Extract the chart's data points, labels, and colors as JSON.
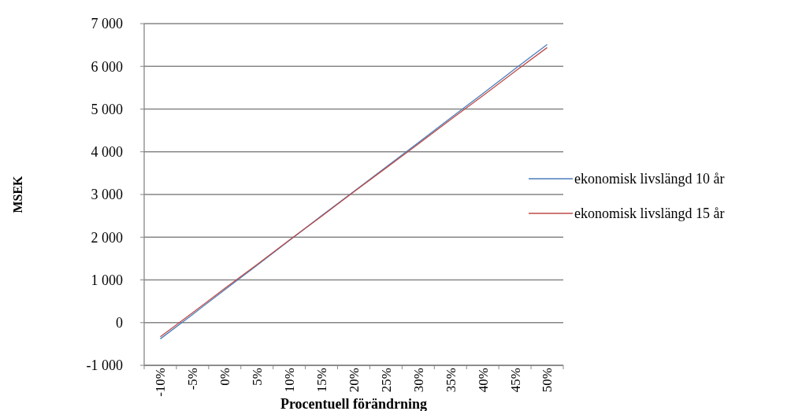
{
  "chart_data": {
    "type": "line",
    "xlabel": "Procentuell förändrning",
    "ylabel": "MSEK",
    "categories": [
      "-10%",
      "-5%",
      "0%",
      "5%",
      "10%",
      "15%",
      "20%",
      "25%",
      "30%",
      "35%",
      "40%",
      "45%",
      "50%"
    ],
    "series": [
      {
        "name": "ekonomisk livslängd 10 år",
        "color": "#4a7ebb",
        "values": [
          -380,
          190,
          770,
          1340,
          1920,
          2500,
          3070,
          3640,
          4210,
          4790,
          5360,
          5940,
          6510
        ]
      },
      {
        "name": "ekonomisk livslängd 15 år",
        "color": "#be4b48",
        "values": [
          -330,
          230,
          800,
          1360,
          1930,
          2490,
          3060,
          3620,
          4180,
          4750,
          5310,
          5880,
          6440
        ]
      }
    ],
    "ylim": [
      -1000,
      7000
    ],
    "yticks": [
      {
        "value": -1000,
        "label": "-1 000"
      },
      {
        "value": 0,
        "label": "0"
      },
      {
        "value": 1000,
        "label": "1 000"
      },
      {
        "value": 2000,
        "label": "2 000"
      },
      {
        "value": 3000,
        "label": "3 000"
      },
      {
        "value": 4000,
        "label": "4 000"
      },
      {
        "value": 5000,
        "label": "5 000"
      },
      {
        "value": 6000,
        "label": "6 000"
      },
      {
        "value": 7000,
        "label": "7 000"
      }
    ],
    "grid": "y",
    "legend": "right",
    "marker": "none",
    "line_style": "solid"
  }
}
